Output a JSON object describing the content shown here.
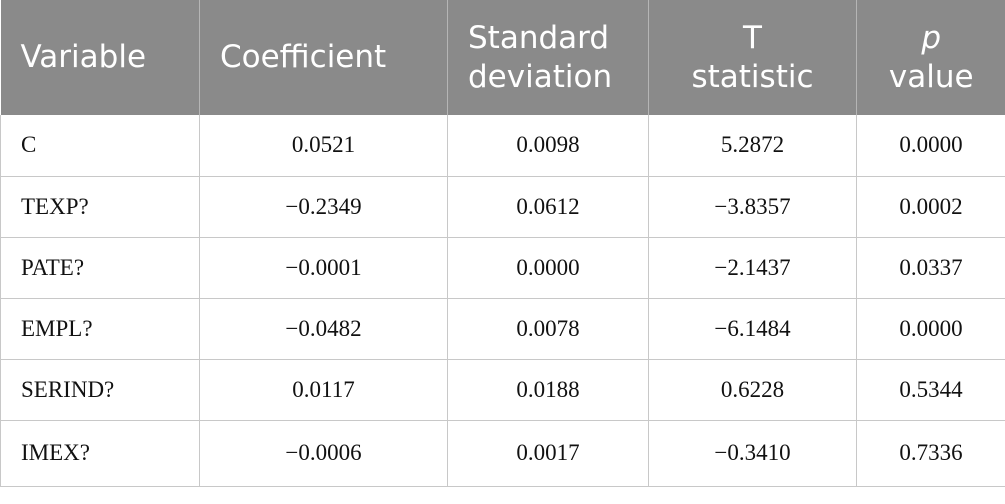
{
  "table": {
    "headers": {
      "variable": "Variable",
      "coefficient": "Coefficient",
      "std_line1": "Standard",
      "std_line2": "deviation",
      "t_line1": "T",
      "t_line2": "statistic",
      "p_line1": "p",
      "p_line2": "value"
    },
    "rows": [
      {
        "variable": "C",
        "coefficient": "0.0521",
        "std_dev": "0.0098",
        "t_stat": "5.2872",
        "p_value": "0.0000"
      },
      {
        "variable": "TEXP?",
        "coefficient": "−0.2349",
        "std_dev": "0.0612",
        "t_stat": "−3.8357",
        "p_value": "0.0002"
      },
      {
        "variable": "PATE?",
        "coefficient": "−0.0001",
        "std_dev": "0.0000",
        "t_stat": "−2.1437",
        "p_value": "0.0337"
      },
      {
        "variable": "EMPL?",
        "coefficient": "−0.0482",
        "std_dev": "0.0078",
        "t_stat": "−6.1484",
        "p_value": "0.0000"
      },
      {
        "variable": "SERIND?",
        "coefficient": "0.0117",
        "std_dev": "0.0188",
        "t_stat": "0.6228",
        "p_value": "0.5344"
      },
      {
        "variable": "IMEX?",
        "coefficient": "−0.0006",
        "std_dev": "0.0017",
        "t_stat": "−0.3410",
        "p_value": "0.7336"
      }
    ]
  },
  "colors": {
    "header_bg": "#8a8a8a",
    "header_text": "#ffffff",
    "grid": "#c8c8c8"
  }
}
